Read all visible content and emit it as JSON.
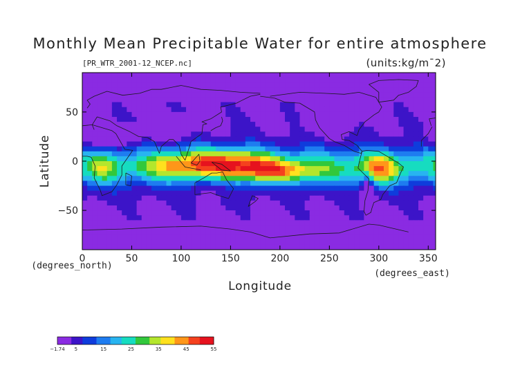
{
  "chart_data": {
    "type": "heatmap",
    "title": "Monthly Mean Precipitable Water for entire atmosphere",
    "subtitle": "[PR_WTR_2001-12_NCEP.nc]",
    "units_label": "(units:kg/m¯2)",
    "xlabel": "Longitude",
    "ylabel": "Latitude",
    "x_unit_label": "(degrees_east)",
    "y_unit_label": "(degrees_north)",
    "xlim": [
      0,
      357.5
    ],
    "ylim": [
      -90,
      90
    ],
    "x_ticks": [
      0,
      50,
      100,
      150,
      200,
      250,
      300,
      350
    ],
    "y_ticks": [
      -50,
      0,
      50
    ],
    "colorbar": {
      "min": -1.74,
      "max": 55,
      "tick_values": [
        -1.74,
        5,
        15,
        25,
        35,
        45,
        55
      ],
      "tick_labels": [
        "−1.74",
        "5",
        "15",
        "25",
        "35",
        "45",
        "55"
      ]
    },
    "field_description": "Precipitable water (kg/m2), December 2001 monthly mean; highest (45-55) over the Indo-Pacific warm pool and the Amazon, lowest (below 5) over Antarctica, the high northern latitudes and the Tibetan Plateau."
  },
  "colors": {
    "background": "#ffffff",
    "axis": "#000000",
    "coastline": "#1a1a1a"
  }
}
